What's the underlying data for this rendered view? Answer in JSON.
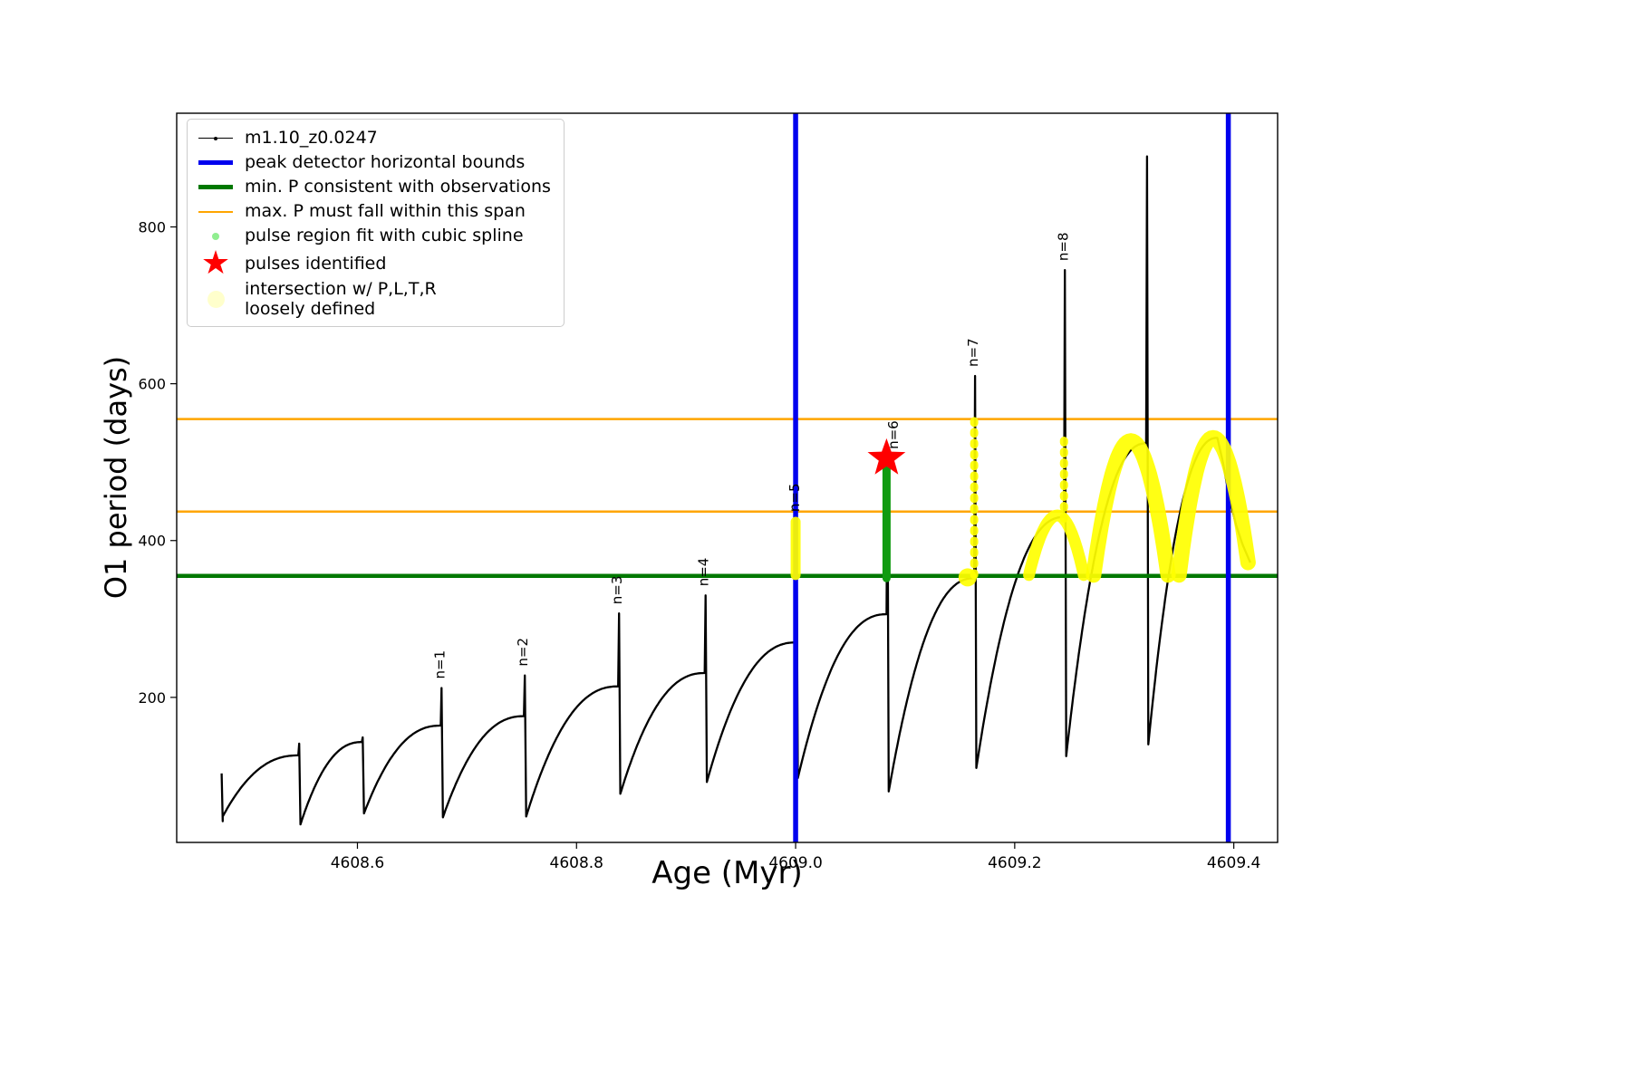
{
  "chart_data": {
    "type": "line",
    "title": "",
    "xlabel": "Age (Myr)",
    "ylabel": "O1 period (days)",
    "xlim": [
      4608.435,
      4609.44
    ],
    "ylim": [
      15,
      945
    ],
    "xtick_values": [
      4608.6,
      4608.8,
      4609.0,
      4609.2,
      4609.4
    ],
    "xtick_labels": [
      "4608.6",
      "4608.8",
      "4609.0",
      "4609.2",
      "4609.4"
    ],
    "ytick_values": [
      200,
      400,
      600,
      800
    ],
    "ytick_labels": [
      "200",
      "400",
      "600",
      "800"
    ],
    "grid": false,
    "series_label": "m1.10_z0.0247",
    "series_color": "#000000",
    "peak_detector_bounds": {
      "label": "peak detector horizontal bounds",
      "color": "#0000ee",
      "x": [
        4609.0,
        4609.395
      ],
      "line_width": 5.5
    },
    "min_P_line": {
      "label": "min. P consistent with observations",
      "color": "#007800",
      "y": 355,
      "line_width": 4.5
    },
    "max_P_span": {
      "label": "max. P must fall within this span",
      "color": "#ffa500",
      "y": [
        555,
        437
      ],
      "line_width": 2.5
    },
    "curve": {
      "pre": [
        [
          4608.476,
          103
        ],
        [
          4608.477,
          42
        ]
      ],
      "cycles": [
        {
          "t0": 4608.477,
          "t1": 4608.546,
          "P0": 48,
          "Ppk": 126,
          "Pspk": 141,
          "n": null
        },
        {
          "t0": 4608.548,
          "t1": 4608.604,
          "P0": 38,
          "Ppk": 143,
          "Pspk": 149,
          "n": null
        },
        {
          "t0": 4608.606,
          "t1": 4608.676,
          "P0": 52,
          "Ppk": 164,
          "Pspk": 212,
          "n": "n=1"
        },
        {
          "t0": 4608.678,
          "t1": 4608.752,
          "P0": 47,
          "Ppk": 176,
          "Pspk": 228,
          "n": "n=2"
        },
        {
          "t0": 4608.754,
          "t1": 4608.838,
          "P0": 48,
          "Ppk": 214,
          "Pspk": 307,
          "n": "n=3"
        },
        {
          "t0": 4608.84,
          "t1": 4608.917,
          "P0": 77,
          "Ppk": 231,
          "Pspk": 330,
          "n": "n=4"
        },
        {
          "t0": 4608.919,
          "t1": 4609.0,
          "P0": 92,
          "Ppk": 270,
          "Pspk": 425,
          "n": "n=5"
        },
        {
          "t0": 4609.002,
          "t1": 4609.083,
          "P0": 97,
          "Ppk": 306,
          "Pspk": 505,
          "n": "n=6"
        },
        {
          "t0": 4609.085,
          "t1": 4609.163,
          "P0": 80,
          "Ppk": 352,
          "Pspk": 610,
          "n": "n=7"
        },
        {
          "t0": 4609.165,
          "t1": 4609.245,
          "P0": 110,
          "Ppk": 430,
          "Pspk": 745,
          "n": "n=8"
        },
        {
          "t0": 4609.247,
          "t1": 4609.32,
          "P0": 125,
          "Ppk": 524,
          "Pspk": 890,
          "n": null
        },
        {
          "t0": 4609.322,
          "t1": 4609.385,
          "P0": 140,
          "Ppk": 531,
          "Pspk": 531,
          "n": null
        }
      ],
      "tail": [
        [
          4609.39,
          500
        ],
        [
          4609.396,
          455
        ],
        [
          4609.402,
          420
        ],
        [
          4609.408,
          395
        ],
        [
          4609.415,
          372
        ]
      ]
    },
    "spline_fit": {
      "label": "pulse region fit with cubic spline",
      "color": "#119b11",
      "x": 4609.083,
      "y_min": 352,
      "y_max": 492,
      "line_width": 9
    },
    "pulse_star": {
      "label": "pulses identified",
      "color": "#ff0000",
      "x": 4609.083,
      "y": 505,
      "outer_r": 22,
      "inner_r": 9
    },
    "yellow_intersection": {
      "label": "intersection w/ P,L,T,R loosely defined",
      "color": "#ffff00",
      "arcs": [
        {
          "x0": 4609.213,
          "y0": 356,
          "xp": 4609.239,
          "yp": 432,
          "x1": 4609.263,
          "y1": 356,
          "w": 13
        },
        {
          "x0": 4609.272,
          "y0": 356,
          "xp": 4609.306,
          "yp": 527,
          "x1": 4609.34,
          "y1": 356,
          "w": 17
        },
        {
          "x0": 4609.35,
          "y0": 356,
          "xp": 4609.381,
          "yp": 531,
          "x1": 4609.413,
          "y1": 372,
          "w": 17
        }
      ],
      "vsegs": [
        {
          "x": 4609.0,
          "y0": 356,
          "y1": 424,
          "w": 11,
          "dash": false
        },
        {
          "x": 4609.163,
          "y0": 356,
          "y1": 558,
          "w": 9,
          "dash": true
        },
        {
          "x": 4609.245,
          "y0": 428,
          "y1": 536,
          "w": 9,
          "dash": true
        }
      ],
      "blobs": [
        {
          "x": 4609.157,
          "y": 353,
          "r": 10
        }
      ]
    },
    "peak_labels": [
      {
        "text": "n=1",
        "x": 4608.676,
        "y": 212
      },
      {
        "text": "n=2",
        "x": 4608.752,
        "y": 228
      },
      {
        "text": "n=3",
        "x": 4608.838,
        "y": 307
      },
      {
        "text": "n=4",
        "x": 4608.917,
        "y": 330
      },
      {
        "text": "n=5",
        "x": 4609.0,
        "y": 425
      },
      {
        "text": "n=6",
        "x": 4609.09,
        "y": 505
      },
      {
        "text": "n=7",
        "x": 4609.163,
        "y": 610
      },
      {
        "text": "n=8",
        "x": 4609.245,
        "y": 745
      }
    ]
  },
  "legend": {
    "items": [
      {
        "label": "m1.10_z0.0247",
        "swatch": {
          "kind": "line-dot",
          "color": "#000000",
          "width": 1.6
        }
      },
      {
        "label": "peak detector horizontal bounds",
        "swatch": {
          "kind": "line",
          "color": "#0000ee",
          "width": 5
        }
      },
      {
        "label": "min. P consistent with observations",
        "swatch": {
          "kind": "line",
          "color": "#007800",
          "width": 5
        }
      },
      {
        "label": "max. P must fall within this span",
        "swatch": {
          "kind": "line",
          "color": "#ffa500",
          "width": 2.5
        }
      },
      {
        "label": "pulse region fit with cubic spline",
        "swatch": {
          "kind": "dot",
          "color": "#90ee90",
          "size": 8
        }
      },
      {
        "label": "pulses identified",
        "swatch": {
          "kind": "star",
          "color": "#ff0000",
          "size": 36
        }
      },
      {
        "label": "intersection w/ P,L,T,R\nloosely defined",
        "swatch": {
          "kind": "dot",
          "color": "#ffffcc",
          "size": 19
        }
      }
    ]
  }
}
